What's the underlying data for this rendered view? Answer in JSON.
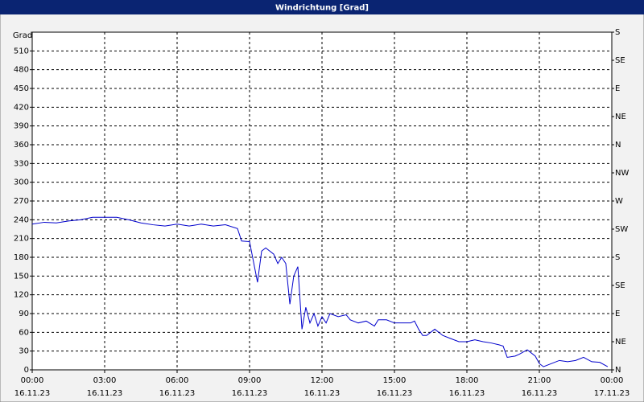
{
  "chart_data": {
    "type": "line",
    "title": "Windrichtung [Grad]",
    "y_label": "Grad",
    "xlim": [
      0,
      24
    ],
    "ylim": [
      0,
      540
    ],
    "y2lim": [
      0,
      540
    ],
    "grid": true,
    "xticks": [
      {
        "value": 0,
        "label": "00:00"
      },
      {
        "value": 3,
        "label": "03:00"
      },
      {
        "value": 6,
        "label": "06:00"
      },
      {
        "value": 9,
        "label": "09:00"
      },
      {
        "value": 12,
        "label": "12:00"
      },
      {
        "value": 15,
        "label": "15:00"
      },
      {
        "value": 18,
        "label": "18:00"
      },
      {
        "value": 21,
        "label": "21:00"
      },
      {
        "value": 24,
        "label": "00:00"
      }
    ],
    "xtick_dates": [
      "16.11.23",
      "16.11.23",
      "16.11.23",
      "16.11.23",
      "16.11.23",
      "16.11.23",
      "16.11.23",
      "16.11.23",
      "17.11.23"
    ],
    "yticks": [
      0,
      30,
      60,
      90,
      120,
      150,
      180,
      210,
      240,
      270,
      300,
      330,
      360,
      390,
      420,
      450,
      480,
      510
    ],
    "y2ticks": [
      {
        "value": 0,
        "label": "N"
      },
      {
        "value": 45,
        "label": "NE"
      },
      {
        "value": 90,
        "label": "E"
      },
      {
        "value": 135,
        "label": "SE"
      },
      {
        "value": 180,
        "label": "S"
      },
      {
        "value": 225,
        "label": "SW"
      },
      {
        "value": 270,
        "label": "W"
      },
      {
        "value": 315,
        "label": "NW"
      },
      {
        "value": 360,
        "label": "N"
      },
      {
        "value": 405,
        "label": "NE"
      },
      {
        "value": 450,
        "label": "E"
      },
      {
        "value": 495,
        "label": "SE"
      },
      {
        "value": 540,
        "label": "S"
      }
    ],
    "series": [
      {
        "color": "#0000cc",
        "x": [
          0,
          0.5,
          1,
          1.5,
          2,
          2.5,
          3,
          3.5,
          4,
          4.5,
          5,
          5.5,
          6,
          6.5,
          7,
          7.5,
          8,
          8.5,
          8.67,
          9,
          9.33,
          9.5,
          9.67,
          10,
          10.17,
          10.33,
          10.5,
          10.67,
          10.83,
          11,
          11.17,
          11.33,
          11.5,
          11.67,
          11.83,
          12,
          12.17,
          12.33,
          12.67,
          13,
          13.17,
          13.5,
          13.83,
          14.17,
          14.33,
          14.67,
          15,
          15.33,
          15.67,
          15.83,
          16,
          16.17,
          16.33,
          16.67,
          17,
          17.33,
          17.67,
          18,
          18.33,
          18.67,
          19,
          19.33,
          19.5,
          19.67,
          20,
          20.17,
          20.5,
          20.83,
          21,
          21.17,
          21.5,
          21.83,
          22.17,
          22.5,
          22.83,
          23.17,
          23.5,
          23.83
        ],
        "values": [
          233,
          236,
          235,
          238,
          240,
          244,
          244,
          244,
          240,
          235,
          232,
          230,
          233,
          230,
          233,
          230,
          232,
          226,
          206,
          205,
          140,
          190,
          195,
          185,
          170,
          180,
          170,
          105,
          150,
          165,
          65,
          100,
          75,
          90,
          70,
          85,
          75,
          90,
          85,
          88,
          80,
          75,
          78,
          70,
          80,
          80,
          75,
          75,
          75,
          78,
          65,
          55,
          55,
          65,
          55,
          50,
          45,
          45,
          48,
          45,
          43,
          40,
          38,
          20,
          22,
          25,
          32,
          22,
          10,
          5,
          10,
          15,
          13,
          15,
          20,
          13,
          12,
          5
        ]
      }
    ]
  }
}
